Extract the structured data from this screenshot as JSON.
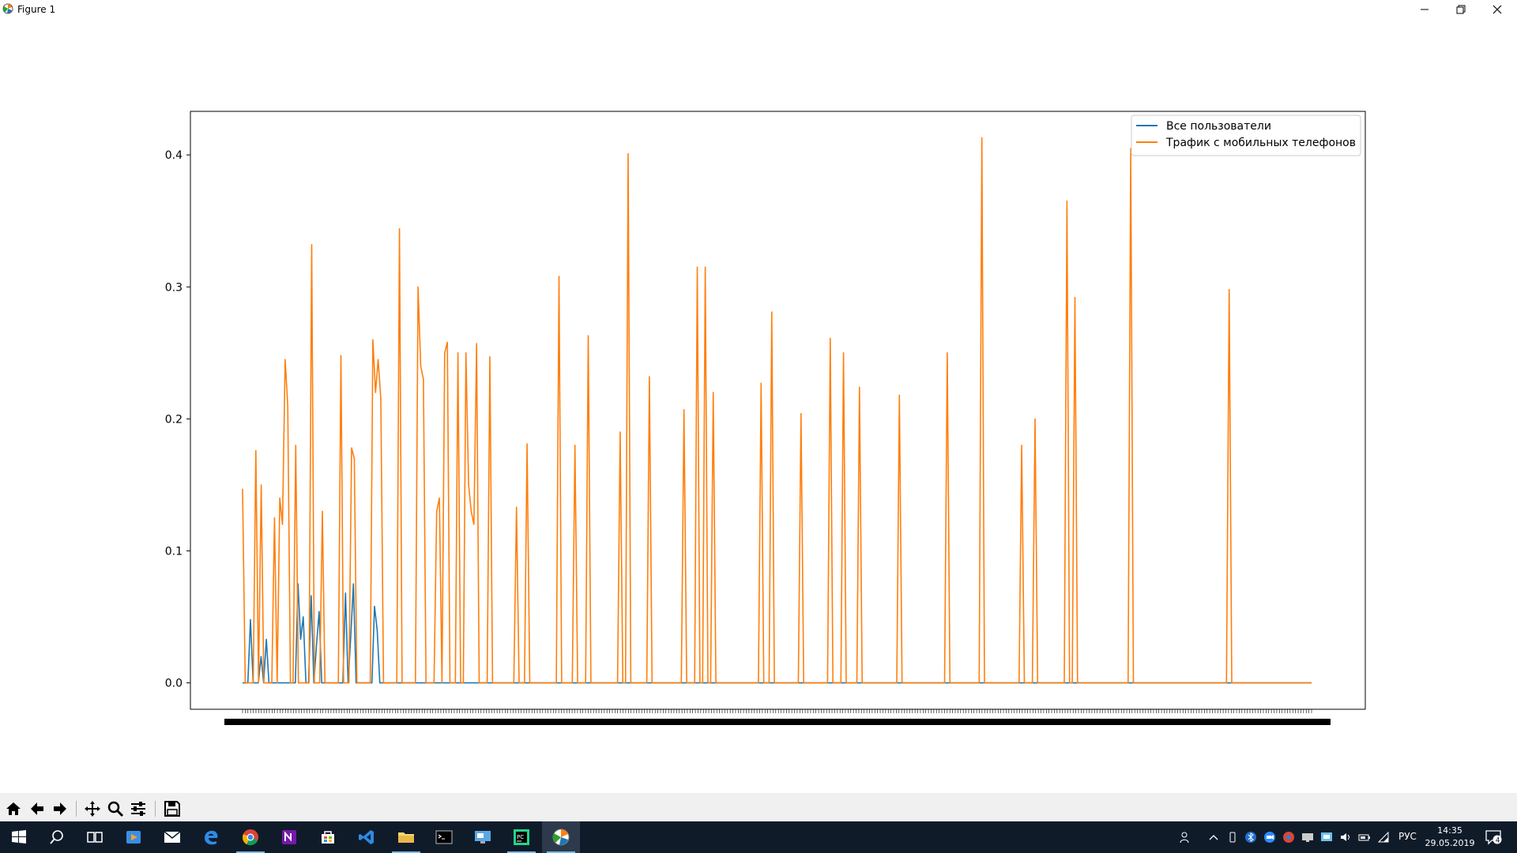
{
  "window": {
    "title": "Figure 1"
  },
  "icons": {
    "app": "matplotlib-icon",
    "minimize": "minimize-icon",
    "restore": "restore-icon",
    "close": "close-icon"
  },
  "toolbar": {
    "tools": [
      "home-icon",
      "back-icon",
      "forward-icon",
      "pan-icon",
      "zoom-icon",
      "configure-subplots-icon",
      "save-icon"
    ]
  },
  "taskbar": {
    "apps": [
      "windows-start-icon",
      "search-icon",
      "task-view-icon",
      "media-player-icon",
      "mail-icon",
      "edge-icon",
      "chrome-icon",
      "onenote-icon",
      "store-icon",
      "visual-studio-icon",
      "file-explorer-icon",
      "terminal-icon",
      "remote-desktop-icon",
      "pycharm-icon",
      "matplotlib-icon"
    ],
    "tray": [
      "people-icon",
      "chevron-up-icon",
      "usb-icon",
      "bluetooth-icon",
      "zoom-icon",
      "browser-icon",
      "display-icon",
      "network-share-icon",
      "volume-icon",
      "battery-icon",
      "wifi-icon"
    ],
    "language": "РУС",
    "time": "14:35",
    "date": "29.05.2019",
    "notification_count": "4"
  },
  "colors": {
    "series1": "#1f77b4",
    "series2": "#ff7f0e"
  },
  "chart_data": {
    "type": "line",
    "title": "",
    "xlabel": "",
    "ylabel": "",
    "ylim": [
      -0.02,
      0.433
    ],
    "yticks": [
      0.0,
      0.1,
      0.2,
      0.3,
      0.4
    ],
    "ytick_labels": [
      "0.0",
      "0.1",
      "0.2",
      "0.3",
      "0.4"
    ],
    "x_tick_count": 400,
    "x_tick_labels_overlapped": true,
    "legend": {
      "position": "upper right"
    },
    "series": [
      {
        "name": "Все пользователи",
        "color": "#1f77b4",
        "values": [
          0.0,
          0.0,
          0.0,
          0.048,
          0.0,
          0.0,
          0.0,
          0.02,
          0.0,
          0.033,
          0.0,
          0.0,
          0.0,
          0.0,
          0.0,
          0.0,
          0.0,
          0.0,
          0.0,
          0.0,
          0.0,
          0.075,
          0.033,
          0.05,
          0.0,
          0.0,
          0.066,
          0.0,
          0.028,
          0.054,
          0.0,
          0.0,
          0.0,
          0.0,
          0.0,
          0.0,
          0.0,
          0.0,
          0.0,
          0.068,
          0.0,
          0.036,
          0.075,
          0.0,
          0.0,
          0.0,
          0.0,
          0.0,
          0.0,
          0.0,
          0.058,
          0.04,
          0.0,
          0.0,
          0.0,
          0.0,
          0.0,
          0.0,
          0.0,
          0.0,
          0.0,
          0.0,
          0.0,
          0.0,
          0.0,
          0.0,
          0.0,
          0.0,
          0.0,
          0.0,
          0.0,
          0.0,
          0.0,
          0.0,
          0.0,
          0.0,
          0.0,
          0.0,
          0.0,
          0.0,
          0.0,
          0.0,
          0.0,
          0.0,
          0.0,
          0.0,
          0.0,
          0.0,
          0.0,
          0.0,
          0.0,
          0.0,
          0.0,
          0.0,
          0.0,
          0.0,
          0.0,
          0.0,
          0.0,
          0.0,
          0.0,
          0.0,
          0.0,
          0.0,
          0.0,
          0.0,
          0.0,
          0.0,
          0.0,
          0.0,
          0.0,
          0.0,
          0.0,
          0.0,
          0.0,
          0.0,
          0.0,
          0.0,
          0.0,
          0.0,
          0.0,
          0.0,
          0.0,
          0.0,
          0.0,
          0.0,
          0.0,
          0.0,
          0.0,
          0.0,
          0.0,
          0.0,
          0.0,
          0.0,
          0.0,
          0.0,
          0.0,
          0.0,
          0.0,
          0.0,
          0.0,
          0.0,
          0.0,
          0.0,
          0.0,
          0.0,
          0.0,
          0.0,
          0.0,
          0.0,
          0.0,
          0.0,
          0.0,
          0.0,
          0.0,
          0.0,
          0.0,
          0.0,
          0.0,
          0.0,
          0.0,
          0.0,
          0.0,
          0.0,
          0.0,
          0.0,
          0.0,
          0.0,
          0.0,
          0.0,
          0.0,
          0.0,
          0.0,
          0.0,
          0.0,
          0.0,
          0.0,
          0.0,
          0.0,
          0.0,
          0.0,
          0.0,
          0.0,
          0.0,
          0.0,
          0.0,
          0.0,
          0.0,
          0.0,
          0.0,
          0.0,
          0.0,
          0.0,
          0.0,
          0.0,
          0.0,
          0.0,
          0.0,
          0.0,
          0.0,
          0.0,
          0.0,
          0.0,
          0.0,
          0.0,
          0.0,
          0.0,
          0.0,
          0.0,
          0.0,
          0.0,
          0.0,
          0.0,
          0.0,
          0.0,
          0.0,
          0.0,
          0.0,
          0.0,
          0.0,
          0.0,
          0.0,
          0.0,
          0.0,
          0.0,
          0.0,
          0.0,
          0.0,
          0.0,
          0.0,
          0.0,
          0.0,
          0.0,
          0.0,
          0.0,
          0.0,
          0.0,
          0.0,
          0.0,
          0.0,
          0.0,
          0.0,
          0.0,
          0.0,
          0.0,
          0.0,
          0.0,
          0.0,
          0.0,
          0.0,
          0.0,
          0.0,
          0.0,
          0.0,
          0.0,
          0.0,
          0.0,
          0.0,
          0.0,
          0.0,
          0.0,
          0.0,
          0.0,
          0.0,
          0.0,
          0.0,
          0.0,
          0.0,
          0.0,
          0.0,
          0.0,
          0.0,
          0.0,
          0.0,
          0.0,
          0.0,
          0.0,
          0.0,
          0.0,
          0.0,
          0.0,
          0.0,
          0.0,
          0.0,
          0.0,
          0.0,
          0.0,
          0.0,
          0.0,
          0.0,
          0.0,
          0.0,
          0.0,
          0.0,
          0.0,
          0.0,
          0.0,
          0.0,
          0.0,
          0.0,
          0.0,
          0.0,
          0.0,
          0.0,
          0.0,
          0.0,
          0.0,
          0.0,
          0.0,
          0.0,
          0.0,
          0.0,
          0.0,
          0.0,
          0.0,
          0.0,
          0.0,
          0.0,
          0.0,
          0.0,
          0.0,
          0.0,
          0.0,
          0.0,
          0.0,
          0.0,
          0.0,
          0.0,
          0.0,
          0.0,
          0.0,
          0.0,
          0.0,
          0.0,
          0.0,
          0.0,
          0.0,
          0.0,
          0.0,
          0.0,
          0.0,
          0.0,
          0.0,
          0.0,
          0.0,
          0.0,
          0.0,
          0.0,
          0.0,
          0.0,
          0.0,
          0.0,
          0.0,
          0.0,
          0.0,
          0.0,
          0.0,
          0.0,
          0.0,
          0.0,
          0.0,
          0.0,
          0.0,
          0.0,
          0.0,
          0.0,
          0.0,
          0.0,
          0.0,
          0.0,
          0.0,
          0.0,
          0.0,
          0.0,
          0.0,
          0.0,
          0.0,
          0.0,
          0.0,
          0.0,
          0.0,
          0.0,
          0.0,
          0.0,
          0.0,
          0.0,
          0.0,
          0.0,
          0.0,
          0.0,
          0.0,
          0.0,
          0.0,
          0.0,
          0.0,
          0.0,
          0.0,
          0.0,
          0.0,
          0.0,
          0.0,
          0.0,
          0.0,
          0.0,
          0.0,
          0.0
        ]
      },
      {
        "name": "Трафик с мобильных телефонов",
        "color": "#ff7f0e",
        "values": [
          0.147,
          0.0,
          0.0,
          0.0,
          0.0,
          0.176,
          0.0,
          0.15,
          0.0,
          0.0,
          0.0,
          0.0,
          0.125,
          0.0,
          0.14,
          0.12,
          0.245,
          0.21,
          0.0,
          0.0,
          0.18,
          0.0,
          0.0,
          0.0,
          0.0,
          0.0,
          0.332,
          0.0,
          0.0,
          0.0,
          0.13,
          0.0,
          0.0,
          0.0,
          0.0,
          0.0,
          0.0,
          0.248,
          0.0,
          0.0,
          0.0,
          0.178,
          0.17,
          0.0,
          0.0,
          0.0,
          0.0,
          0.0,
          0.0,
          0.26,
          0.22,
          0.245,
          0.215,
          0.0,
          0.0,
          0.0,
          0.0,
          0.0,
          0.0,
          0.344,
          0.0,
          0.0,
          0.0,
          0.0,
          0.0,
          0.0,
          0.3,
          0.24,
          0.23,
          0.0,
          0.0,
          0.0,
          0.0,
          0.13,
          0.14,
          0.0,
          0.25,
          0.258,
          0.0,
          0.0,
          0.0,
          0.25,
          0.0,
          0.0,
          0.25,
          0.15,
          0.13,
          0.12,
          0.257,
          0.0,
          0.0,
          0.0,
          0.0,
          0.247,
          0.0,
          0.0,
          0.0,
          0.0,
          0.0,
          0.0,
          0.0,
          0.0,
          0.0,
          0.133,
          0.0,
          0.0,
          0.0,
          0.181,
          0.0,
          0.0,
          0.0,
          0.0,
          0.0,
          0.0,
          0.0,
          0.0,
          0.0,
          0.0,
          0.0,
          0.308,
          0.0,
          0.0,
          0.0,
          0.0,
          0.0,
          0.18,
          0.0,
          0.0,
          0.0,
          0.0,
          0.263,
          0.0,
          0.0,
          0.0,
          0.0,
          0.0,
          0.0,
          0.0,
          0.0,
          0.0,
          0.0,
          0.0,
          0.19,
          0.0,
          0.0,
          0.401,
          0.0,
          0.0,
          0.0,
          0.0,
          0.0,
          0.0,
          0.0,
          0.232,
          0.0,
          0.0,
          0.0,
          0.0,
          0.0,
          0.0,
          0.0,
          0.0,
          0.0,
          0.0,
          0.0,
          0.0,
          0.207,
          0.0,
          0.0,
          0.0,
          0.0,
          0.315,
          0.0,
          0.0,
          0.315,
          0.0,
          0.0,
          0.22,
          0.0,
          0.0,
          0.0,
          0.0,
          0.0,
          0.0,
          0.0,
          0.0,
          0.0,
          0.0,
          0.0,
          0.0,
          0.0,
          0.0,
          0.0,
          0.0,
          0.0,
          0.227,
          0.0,
          0.0,
          0.0,
          0.281,
          0.0,
          0.0,
          0.0,
          0.0,
          0.0,
          0.0,
          0.0,
          0.0,
          0.0,
          0.0,
          0.204,
          0.0,
          0.0,
          0.0,
          0.0,
          0.0,
          0.0,
          0.0,
          0.0,
          0.0,
          0.0,
          0.261,
          0.0,
          0.0,
          0.0,
          0.0,
          0.25,
          0.0,
          0.0,
          0.0,
          0.0,
          0.0,
          0.224,
          0.0,
          0.0,
          0.0,
          0.0,
          0.0,
          0.0,
          0.0,
          0.0,
          0.0,
          0.0,
          0.0,
          0.0,
          0.0,
          0.0,
          0.218,
          0.0,
          0.0,
          0.0,
          0.0,
          0.0,
          0.0,
          0.0,
          0.0,
          0.0,
          0.0,
          0.0,
          0.0,
          0.0,
          0.0,
          0.0,
          0.0,
          0.0,
          0.25,
          0.0,
          0.0,
          0.0,
          0.0,
          0.0,
          0.0,
          0.0,
          0.0,
          0.0,
          0.0,
          0.0,
          0.0,
          0.413,
          0.0,
          0.0,
          0.0,
          0.0,
          0.0,
          0.0,
          0.0,
          0.0,
          0.0,
          0.0,
          0.0,
          0.0,
          0.0,
          0.0,
          0.18,
          0.0,
          0.0,
          0.0,
          0.0,
          0.2,
          0.0,
          0.0,
          0.0,
          0.0,
          0.0,
          0.0,
          0.0,
          0.0,
          0.0,
          0.0,
          0.0,
          0.365,
          0.0,
          0.0,
          0.292,
          0.0,
          0.0,
          0.0,
          0.0,
          0.0,
          0.0,
          0.0,
          0.0,
          0.0,
          0.0,
          0.0,
          0.0,
          0.0,
          0.0,
          0.0,
          0.0,
          0.0,
          0.0,
          0.0,
          0.0,
          0.405,
          0.0,
          0.0,
          0.0,
          0.0,
          0.0,
          0.0,
          0.0,
          0.0,
          0.0,
          0.0,
          0.0,
          0.0,
          0.0,
          0.0,
          0.0,
          0.0,
          0.0,
          0.0,
          0.0,
          0.0,
          0.0,
          0.0,
          0.0,
          0.0,
          0.0,
          0.0,
          0.0,
          0.0,
          0.0,
          0.0,
          0.0,
          0.0,
          0.0,
          0.0,
          0.0,
          0.0,
          0.298,
          0.0,
          0.0,
          0.0,
          0.0,
          0.0,
          0.0,
          0.0,
          0.0,
          0.0,
          0.0,
          0.0,
          0.0,
          0.0,
          0.0,
          0.0,
          0.0,
          0.0,
          0.0,
          0.0,
          0.0,
          0.0,
          0.0,
          0.0,
          0.0,
          0.0,
          0.0,
          0.0,
          0.0,
          0.0,
          0.0,
          0.0
        ]
      }
    ]
  }
}
